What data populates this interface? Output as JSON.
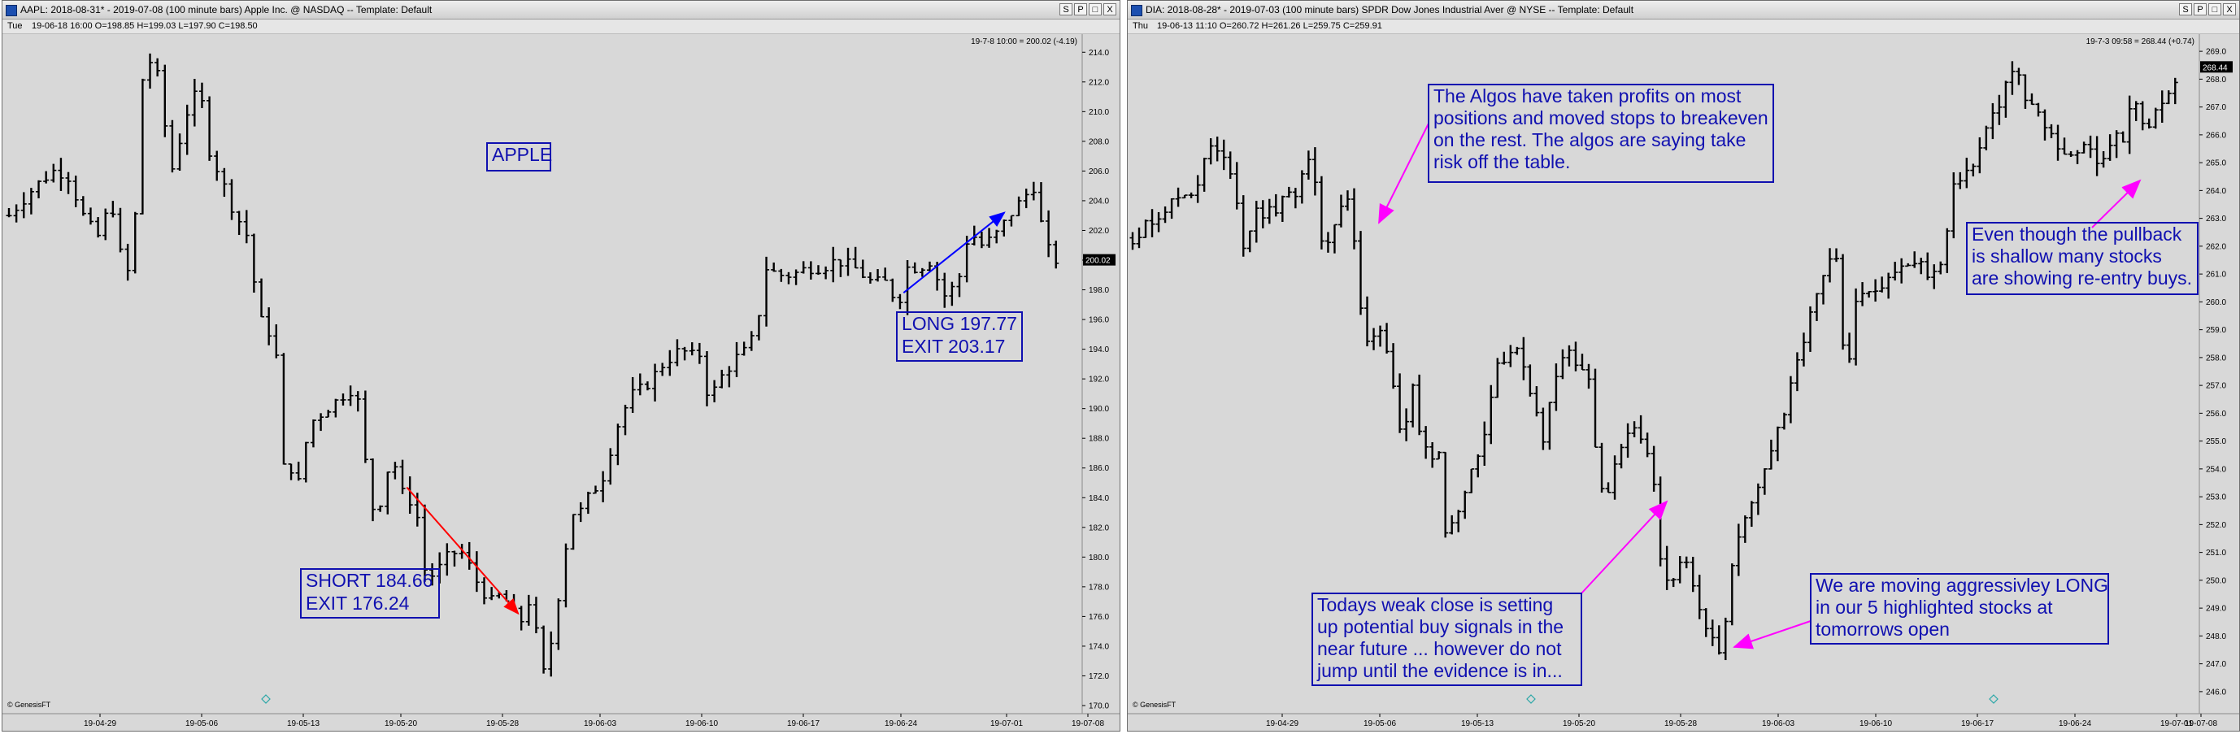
{
  "charts": [
    {
      "title_text": "AAPL:  2018-08-31* - 2019-07-08  (100 minute bars)   Apple Inc. @ NASDAQ  --  Template: Default",
      "day": "Tue",
      "ohlc": "19-06-18 16:00   O=198.85  H=199.03  L=197.90  C=198.50",
      "last_bar_info": "19-7-8 10:00 = 200.02 (-4.19)",
      "last_price": "200.02",
      "genesis": "© GenesisFT",
      "window_buttons": [
        "S",
        "P",
        "□",
        "X"
      ]
    },
    {
      "title_text": "DIA:  2018-08-28* - 2019-07-03  (100 minute bars)   SPDR Dow Jones Industrial Aver @ NYSE  --  Template: Default",
      "day": "Thu",
      "ohlc": "19-06-13 11:10   O=260.72  H=261.26  L=259.75  C=259.91",
      "last_bar_info": "19-7-3 09:58 = 268.44 (+0.74)",
      "last_price": "268.44",
      "genesis": "© GenesisFT",
      "window_buttons": [
        "S",
        "P",
        "□",
        "X"
      ]
    }
  ],
  "chart_data": [
    {
      "type": "ohlc",
      "ticker": "AAPL",
      "ylim": [
        170,
        215
      ],
      "yticks": [
        170,
        172,
        174,
        176,
        178,
        180,
        182,
        184,
        186,
        188,
        190,
        192,
        194,
        196,
        198,
        200,
        202,
        204,
        206,
        208,
        210,
        212,
        214
      ],
      "xtick_labels": [
        "19-04-29",
        "19-05-06",
        "19-05-13",
        "19-05-20",
        "19-05-28",
        "19-06-03",
        "19-06-10",
        "19-06-17",
        "19-06-24",
        "19-07-01",
        "19-07-08"
      ],
      "last_price": 200.02,
      "price_path": [
        [
          0.0,
          203
        ],
        [
          1.5,
          205
        ],
        [
          2.5,
          206
        ],
        [
          3.3,
          205.8
        ],
        [
          4.2,
          203
        ],
        [
          5.0,
          201.5
        ],
        [
          5.8,
          204
        ],
        [
          6.5,
          199
        ],
        [
          7.0,
          199.5
        ],
        [
          7.5,
          212
        ],
        [
          8.2,
          214
        ],
        [
          9.2,
          206
        ],
        [
          10.2,
          210.5
        ],
        [
          10.8,
          211.5
        ],
        [
          11.3,
          207.5
        ],
        [
          12.0,
          205.5
        ],
        [
          12.8,
          203
        ],
        [
          13.4,
          202
        ],
        [
          14.2,
          196
        ],
        [
          14.8,
          195
        ],
        [
          15.1,
          194
        ],
        [
          15.4,
          186
        ],
        [
          16.0,
          186
        ],
        [
          16.3,
          184.5
        ],
        [
          17.0,
          189
        ],
        [
          18.0,
          190
        ],
        [
          19.0,
          191
        ],
        [
          19.6,
          191.5
        ],
        [
          19.8,
          190
        ],
        [
          20.4,
          184
        ],
        [
          20.8,
          182.5
        ],
        [
          21.2,
          185
        ],
        [
          21.7,
          187
        ],
        [
          22.1,
          184.5
        ],
        [
          22.5,
          184
        ],
        [
          23.0,
          183.5
        ],
        [
          23.6,
          178.5
        ],
        [
          24.2,
          179
        ],
        [
          24.8,
          180
        ],
        [
          25.5,
          180.5
        ],
        [
          26.0,
          179.5
        ],
        [
          26.6,
          178
        ],
        [
          27.3,
          177
        ],
        [
          27.9,
          177.5
        ],
        [
          28.4,
          176.5
        ],
        [
          28.9,
          175.5
        ],
        [
          29.4,
          177
        ],
        [
          30.0,
          174
        ],
        [
          30.4,
          171
        ],
        [
          30.8,
          176
        ],
        [
          31.3,
          178.5
        ],
        [
          31.7,
          183
        ],
        [
          32.3,
          183
        ],
        [
          33.0,
          184.5
        ],
        [
          33.5,
          185
        ],
        [
          34.2,
          188
        ],
        [
          34.6,
          189.5
        ],
        [
          35.3,
          191
        ],
        [
          36.0,
          191.5
        ],
        [
          37.0,
          193
        ],
        [
          38.0,
          194
        ],
        [
          38.6,
          193.5
        ],
        [
          39.0,
          194
        ],
        [
          39.6,
          190.5
        ],
        [
          40.2,
          192
        ],
        [
          41.2,
          193.5
        ],
        [
          41.8,
          194
        ],
        [
          42.3,
          195.5
        ],
        [
          42.8,
          199.5
        ],
        [
          43.5,
          199
        ],
        [
          44.3,
          199
        ],
        [
          45.2,
          199.5
        ],
        [
          46.0,
          199.5
        ],
        [
          46.8,
          200
        ],
        [
          47.8,
          199.5
        ],
        [
          48.8,
          198.5
        ],
        [
          49.6,
          198.5
        ],
        [
          50.3,
          197
        ],
        [
          50.8,
          199.5
        ],
        [
          51.5,
          199.5
        ],
        [
          52.2,
          200
        ],
        [
          52.8,
          197.5
        ],
        [
          53.3,
          198
        ],
        [
          53.8,
          199
        ],
        [
          54.3,
          202
        ],
        [
          55.0,
          201
        ],
        [
          55.7,
          201.5
        ],
        [
          56.3,
          202.5
        ],
        [
          56.9,
          203.5
        ],
        [
          57.6,
          204.5
        ],
        [
          58.0,
          205
        ],
        [
          58.6,
          201
        ],
        [
          59.2,
          200
        ],
        [
          59.6,
          200
        ]
      ],
      "annotations": [
        {
          "lines": [
            "APPLE"
          ]
        },
        {
          "lines": [
            "LONG 197.77",
            "EXIT 203.17"
          ]
        },
        {
          "lines": [
            "SHORT 184.66",
            "EXIT 176.24"
          ]
        }
      ],
      "trade_lines": [
        {
          "color": "#ff0000",
          "from": [
            22.5,
            184.7
          ],
          "to": [
            28.8,
            176.2
          ]
        },
        {
          "color": "#0000ff",
          "from": [
            50.6,
            197.8
          ],
          "to": [
            56.3,
            203.2
          ]
        }
      ]
    },
    {
      "type": "ohlc",
      "ticker": "DIA",
      "ylim": [
        245.5,
        269.5
      ],
      "yticks": [
        246,
        247,
        248,
        249,
        250,
        251,
        252,
        253,
        254,
        255,
        256,
        257,
        258,
        259,
        260,
        261,
        262,
        263,
        264,
        265,
        266,
        267,
        268,
        269
      ],
      "xtick_labels": [
        "19-04-29",
        "19-05-06",
        "19-05-13",
        "19-05-20",
        "19-05-28",
        "19-06-03",
        "19-06-10",
        "19-06-17",
        "19-06-24",
        "19-07-01",
        "19-07-08"
      ],
      "last_price": 268.44,
      "price_path": [
        [
          0.0,
          262.3
        ],
        [
          1.0,
          262.8
        ],
        [
          2.0,
          263.3
        ],
        [
          3.0,
          263.8
        ],
        [
          4.0,
          264.0
        ],
        [
          5.0,
          265.6
        ],
        [
          6.0,
          265.0
        ],
        [
          6.6,
          264.5
        ],
        [
          7.0,
          261.7
        ],
        [
          7.5,
          262.6
        ],
        [
          8.0,
          263.2
        ],
        [
          9.0,
          263.2
        ],
        [
          10.0,
          263.8
        ],
        [
          10.6,
          264.0
        ],
        [
          11.2,
          265.3
        ],
        [
          11.8,
          264.0
        ],
        [
          12.3,
          261.7
        ],
        [
          12.8,
          262.6
        ],
        [
          13.2,
          263.2
        ],
        [
          13.8,
          263.9
        ],
        [
          14.2,
          262.6
        ],
        [
          14.6,
          260.0
        ],
        [
          15.1,
          258.5
        ],
        [
          15.6,
          259.0
        ],
        [
          16.2,
          259.0
        ],
        [
          16.8,
          257.0
        ],
        [
          17.4,
          254.5
        ],
        [
          18.0,
          257.0
        ],
        [
          18.6,
          255.0
        ],
        [
          19.2,
          254.5
        ],
        [
          19.8,
          254.8
        ],
        [
          20.2,
          251.5
        ],
        [
          20.8,
          252.2
        ],
        [
          21.5,
          253.5
        ],
        [
          22.2,
          254.5
        ],
        [
          22.8,
          255.5
        ],
        [
          23.5,
          258.0
        ],
        [
          24.2,
          257.8
        ],
        [
          24.8,
          258.5
        ],
        [
          25.3,
          257.5
        ],
        [
          25.8,
          256.5
        ],
        [
          26.5,
          254.8
        ],
        [
          27.0,
          257.0
        ],
        [
          27.6,
          258.0
        ],
        [
          28.2,
          258.2
        ],
        [
          28.8,
          257.5
        ],
        [
          29.4,
          257.2
        ],
        [
          30.0,
          253.5
        ],
        [
          30.6,
          253.2
        ],
        [
          31.2,
          254.2
        ],
        [
          31.6,
          254.7
        ],
        [
          32.0,
          255.3
        ],
        [
          32.6,
          255.5
        ],
        [
          33.2,
          254.5
        ],
        [
          33.6,
          253.5
        ],
        [
          34.1,
          250.0
        ],
        [
          34.6,
          249.8
        ],
        [
          35.2,
          250.5
        ],
        [
          35.8,
          250.5
        ],
        [
          36.2,
          249.5
        ],
        [
          36.8,
          248.2
        ],
        [
          37.2,
          248.0
        ],
        [
          37.6,
          247.5
        ],
        [
          38.0,
          247.3
        ],
        [
          38.5,
          250.5
        ],
        [
          39.1,
          251.5
        ],
        [
          39.7,
          252.5
        ],
        [
          40.3,
          253.5
        ],
        [
          41.0,
          254.5
        ],
        [
          41.6,
          255.5
        ],
        [
          42.1,
          256.0
        ],
        [
          42.6,
          257.5
        ],
        [
          43.2,
          258.5
        ],
        [
          43.8,
          260.0
        ],
        [
          44.4,
          260.8
        ],
        [
          45.0,
          261.8
        ],
        [
          45.5,
          261.2
        ],
        [
          46.0,
          256.5
        ],
        [
          46.4,
          259.5
        ],
        [
          47.0,
          260.5
        ],
        [
          47.6,
          260.4
        ],
        [
          48.2,
          260.6
        ],
        [
          48.8,
          261.0
        ],
        [
          49.4,
          261.2
        ],
        [
          50.0,
          261.3
        ],
        [
          50.5,
          261.4
        ],
        [
          51.0,
          261.2
        ],
        [
          51.5,
          260.8
        ],
        [
          52.0,
          261.3
        ],
        [
          52.5,
          262.5
        ],
        [
          53.0,
          264.5
        ],
        [
          53.5,
          264.2
        ],
        [
          54.0,
          264.8
        ],
        [
          54.6,
          265.5
        ],
        [
          55.2,
          266.5
        ],
        [
          55.8,
          267.0
        ],
        [
          56.4,
          268.0
        ],
        [
          56.9,
          268.5
        ],
        [
          57.4,
          267.3
        ],
        [
          58.0,
          267.0
        ],
        [
          58.6,
          266.5
        ],
        [
          59.2,
          266.0
        ],
        [
          59.8,
          265.5
        ],
        [
          60.4,
          265.2
        ],
        [
          61.0,
          265.5
        ],
        [
          61.6,
          265.5
        ],
        [
          62.2,
          265.0
        ],
        [
          62.8,
          265.5
        ],
        [
          63.4,
          266.0
        ],
        [
          63.9,
          265.8
        ],
        [
          64.5,
          267.5
        ],
        [
          65.1,
          266.3
        ],
        [
          65.7,
          266.5
        ],
        [
          66.3,
          267.0
        ],
        [
          66.9,
          267.5
        ],
        [
          67.5,
          268.3
        ]
      ],
      "annotations": [
        {
          "lines": [
            "The Algos have taken profits on most",
            "positions and moved stops to breakeven",
            "on the rest. The algos are saying take",
            "risk off the table."
          ]
        },
        {
          "lines": [
            "Even though the pullback",
            "is shallow many stocks",
            "are showing re-entry buys."
          ]
        },
        {
          "lines": [
            "We are moving aggressivley LONG",
            "in our 5 highlighted stocks at",
            "tomorrows open"
          ]
        },
        {
          "lines": [
            "Todays weak close is setting",
            "up potential buy signals in the",
            "near future ... however do not",
            "jump until the evidence is in..."
          ]
        }
      ],
      "arrows_color": "#ff00ff"
    }
  ]
}
